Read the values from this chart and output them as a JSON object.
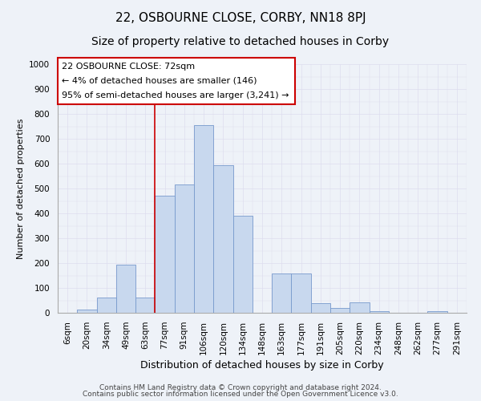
{
  "title_line1": "22, OSBOURNE CLOSE, CORBY, NN18 8PJ",
  "title_line2": "Size of property relative to detached houses in Corby",
  "xlabel": "Distribution of detached houses by size in Corby",
  "ylabel": "Number of detached properties",
  "footer_line1": "Contains HM Land Registry data © Crown copyright and database right 2024.",
  "footer_line2": "Contains public sector information licensed under the Open Government Licence v3.0.",
  "annotation_line1": "22 OSBOURNE CLOSE: 72sqm",
  "annotation_line2": "← 4% of detached houses are smaller (146)",
  "annotation_line3": "95% of semi-detached houses are larger (3,241) →",
  "bar_labels": [
    "6sqm",
    "20sqm",
    "34sqm",
    "49sqm",
    "63sqm",
    "77sqm",
    "91sqm",
    "106sqm",
    "120sqm",
    "134sqm",
    "148sqm",
    "163sqm",
    "177sqm",
    "191sqm",
    "205sqm",
    "220sqm",
    "234sqm",
    "248sqm",
    "262sqm",
    "277sqm",
    "291sqm"
  ],
  "bar_values": [
    0,
    12,
    60,
    195,
    60,
    470,
    515,
    755,
    595,
    390,
    0,
    157,
    157,
    38,
    20,
    43,
    5,
    0,
    0,
    5,
    0
  ],
  "bar_color": "#c8d8ee",
  "bar_edge_color": "#7799cc",
  "vline_x_index": 5,
  "ylim": [
    0,
    1000
  ],
  "yticks": [
    0,
    100,
    200,
    300,
    400,
    500,
    600,
    700,
    800,
    900,
    1000
  ],
  "grid_color": "#ddddee",
  "background_color": "#eef2f8",
  "plot_bg_color": "#eef2f8",
  "annotation_box_color": "#ffffff",
  "annotation_box_edge": "#cc0000",
  "vline_color": "#cc0000",
  "title1_fontsize": 11,
  "title2_fontsize": 10,
  "xlabel_fontsize": 9,
  "ylabel_fontsize": 8,
  "tick_fontsize": 7.5,
  "annotation_fontsize": 8,
  "footer_fontsize": 6.5
}
